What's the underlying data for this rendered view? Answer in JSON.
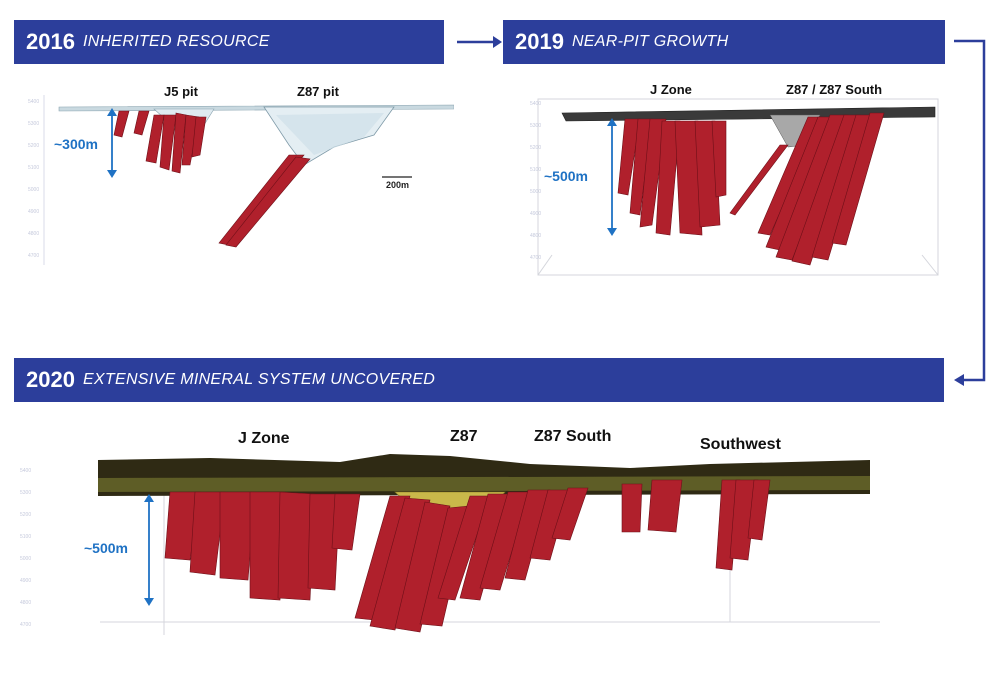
{
  "panels": [
    {
      "year": "2016",
      "subtitle": "INHERITED RESOURCE",
      "labels": [
        "J5 pit",
        "Z87 pit"
      ],
      "depth": "~300m",
      "scale": "200m"
    },
    {
      "year": "2019",
      "subtitle": "NEAR-PIT GROWTH",
      "labels": [
        "J Zone",
        "Z87 / Z87 South"
      ],
      "depth": "~500m"
    },
    {
      "year": "2020",
      "subtitle": "EXTENSIVE MINERAL SYSTEM UNCOVERED",
      "labels": [
        "J Zone",
        "Z87",
        "Z87 South",
        "Southwest"
      ],
      "depth": "~500m"
    }
  ],
  "colors": {
    "banner": "#2c3e9b",
    "ore": "#b0202c",
    "depth_arrow": "#1f72c4"
  }
}
